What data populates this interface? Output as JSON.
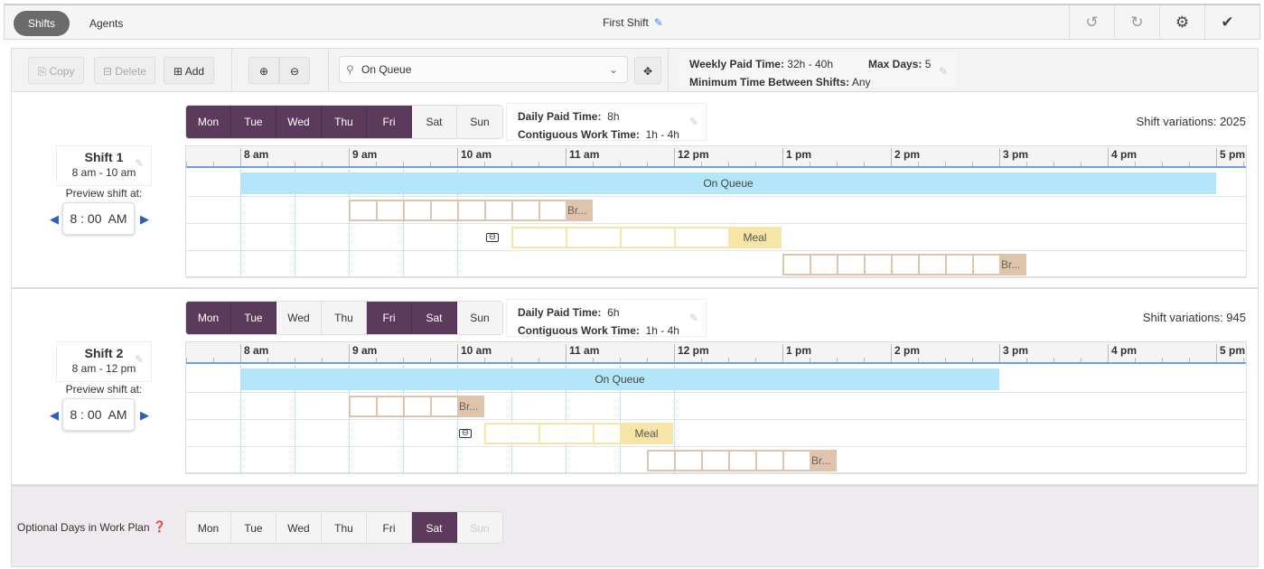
{
  "header": {
    "tabs": [
      {
        "label": "Shifts",
        "active": true
      },
      {
        "label": "Agents",
        "active": false
      }
    ],
    "title": "First Shift",
    "icons": [
      "undo-icon",
      "redo-icon",
      "gear-icon",
      "checkmark-icon"
    ]
  },
  "toolbar": {
    "copy": "Copy",
    "delete": "Delete",
    "add": "Add",
    "activity_select": "On Queue",
    "weekly_paid_label": "Weekly Paid Time:",
    "weekly_paid_value": "32h - 40h",
    "max_days_label": "Max Days:",
    "max_days_value": "5",
    "min_between_label": "Minimum Time Between Shifts:",
    "min_between_value": "Any"
  },
  "hours": [
    "8 am",
    "9 am",
    "10 am",
    "11 am",
    "12 pm",
    "1 pm",
    "2 pm",
    "3 pm",
    "4 pm",
    "5 pm"
  ],
  "shifts": [
    {
      "name": "Shift 1",
      "range": "8 am - 10 am",
      "preview_label": "Preview shift at:",
      "preview_time": "8 : 00  AM",
      "days": [
        {
          "label": "Mon",
          "on": true
        },
        {
          "label": "Tue",
          "on": true
        },
        {
          "label": "Wed",
          "on": true
        },
        {
          "label": "Thu",
          "on": true
        },
        {
          "label": "Fri",
          "on": true
        },
        {
          "label": "Sat",
          "on": false
        },
        {
          "label": "Sun",
          "on": false
        }
      ],
      "daily_paid_label": "Daily Paid Time:",
      "daily_paid_value": "8h",
      "contiguous_label": "Contiguous Work Time:",
      "contiguous_value": "1h - 4h",
      "variations": "Shift variations: 2025",
      "activities": {
        "queue": "On Queue",
        "break1": "Br...",
        "meal": "Meal",
        "break2": "Br..."
      }
    },
    {
      "name": "Shift 2",
      "range": "8 am - 12 pm",
      "preview_label": "Preview shift at:",
      "preview_time": "8 : 00  AM",
      "days": [
        {
          "label": "Mon",
          "on": true
        },
        {
          "label": "Tue",
          "on": true
        },
        {
          "label": "Wed",
          "on": false
        },
        {
          "label": "Thu",
          "on": false
        },
        {
          "label": "Fri",
          "on": true
        },
        {
          "label": "Sat",
          "on": true
        },
        {
          "label": "Sun",
          "on": false
        }
      ],
      "daily_paid_label": "Daily Paid Time:",
      "daily_paid_value": "6h",
      "contiguous_label": "Contiguous Work Time:",
      "contiguous_value": "1h - 4h",
      "variations": "Shift variations: 945",
      "activities": {
        "queue": "On Queue",
        "break1": "Br...",
        "meal": "Meal",
        "break2": "Br..."
      }
    }
  ],
  "optional": {
    "label": "Optional Days in Work Plan",
    "days": [
      {
        "label": "Mon",
        "on": false
      },
      {
        "label": "Tue",
        "on": false
      },
      {
        "label": "Wed",
        "on": false
      },
      {
        "label": "Thu",
        "on": false
      },
      {
        "label": "Fri",
        "on": false
      },
      {
        "label": "Sat",
        "on": true
      },
      {
        "label": "Sun",
        "on": false,
        "disabled": true
      }
    ]
  },
  "colors": {
    "accent": "#5b3a5b",
    "queue": "#b3e6f9",
    "break": "#e0c3ab",
    "meal": "#f6e5a6",
    "timeline_line": "#6b9ef0"
  }
}
